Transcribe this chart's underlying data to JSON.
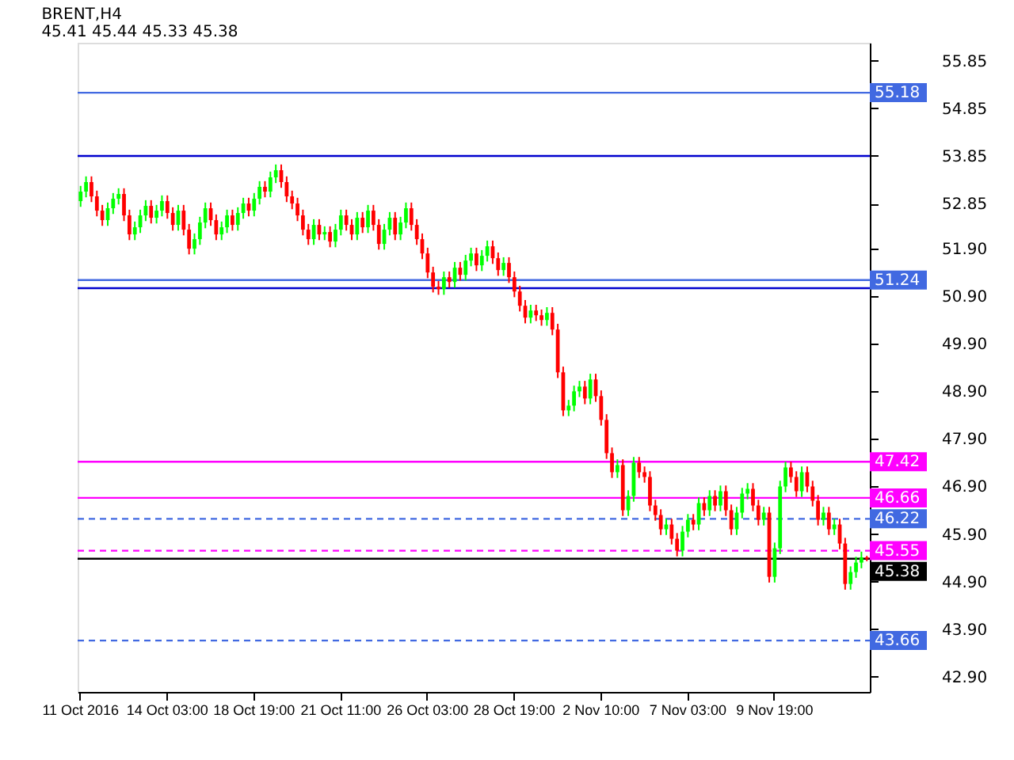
{
  "chart_data": {
    "type": "candlestick",
    "title": "BRENT,H4",
    "subtitle": "45.41 45.44 45.33 45.38",
    "categories": [
      "11 Oct 2016",
      null,
      null,
      null,
      null,
      null,
      null,
      null,
      null,
      null,
      null,
      null,
      null,
      null,
      null,
      null,
      "14 Oct 03:00",
      null,
      null,
      null,
      null,
      null,
      null,
      null,
      null,
      null,
      null,
      null,
      null,
      null,
      null,
      null,
      "18 Oct 19:00",
      null,
      null,
      null,
      null,
      null,
      null,
      null,
      null,
      null,
      null,
      null,
      null,
      null,
      null,
      null,
      "21 Oct 11:00",
      null,
      null,
      null,
      null,
      null,
      null,
      null,
      null,
      null,
      null,
      null,
      null,
      null,
      null,
      null,
      "26 Oct 03:00",
      null,
      null,
      null,
      null,
      null,
      null,
      null,
      null,
      null,
      null,
      null,
      null,
      null,
      null,
      null,
      "28 Oct 19:00",
      null,
      null,
      null,
      null,
      null,
      null,
      null,
      null,
      null,
      null,
      null,
      null,
      null,
      null,
      null,
      "2 Nov 10:00",
      null,
      null,
      null,
      null,
      null,
      null,
      null,
      null,
      null,
      null,
      null,
      null,
      null,
      null,
      null,
      "7 Nov 03:00",
      null,
      null,
      null,
      null,
      null,
      null,
      null,
      null,
      null,
      null,
      null,
      null,
      null,
      null,
      null,
      "9 Nov 19:00",
      null,
      null,
      null,
      null,
      null,
      null,
      null,
      null,
      null,
      null,
      null,
      null,
      null,
      null,
      null,
      null,
      null
    ],
    "ohlc": [
      [
        52.9,
        53.22,
        52.78,
        53.1
      ],
      [
        53.1,
        53.42,
        52.98,
        53.3
      ],
      [
        53.3,
        53.42,
        52.88,
        53.0
      ],
      [
        53.0,
        53.12,
        52.58,
        52.7
      ],
      [
        52.7,
        52.82,
        52.38,
        52.5
      ],
      [
        52.5,
        52.87,
        52.38,
        52.75
      ],
      [
        52.75,
        53.07,
        52.63,
        52.95
      ],
      [
        52.95,
        53.17,
        52.83,
        53.05
      ],
      [
        53.05,
        53.17,
        52.48,
        52.6
      ],
      [
        52.6,
        52.72,
        52.08,
        52.2
      ],
      [
        52.2,
        52.47,
        52.08,
        52.35
      ],
      [
        52.35,
        52.72,
        52.23,
        52.6
      ],
      [
        52.6,
        52.92,
        52.48,
        52.8
      ],
      [
        52.8,
        52.92,
        52.43,
        52.55
      ],
      [
        52.55,
        52.82,
        52.43,
        52.7
      ],
      [
        52.7,
        53.02,
        52.58,
        52.9
      ],
      [
        52.9,
        53.02,
        52.53,
        52.65
      ],
      [
        52.65,
        52.77,
        52.28,
        52.4
      ],
      [
        52.4,
        52.82,
        52.28,
        52.7
      ],
      [
        52.7,
        52.82,
        52.18,
        52.3
      ],
      [
        52.3,
        52.42,
        51.78,
        51.9
      ],
      [
        51.9,
        52.22,
        51.78,
        52.1
      ],
      [
        52.1,
        52.57,
        51.98,
        52.45
      ],
      [
        52.45,
        52.87,
        52.33,
        52.75
      ],
      [
        52.75,
        52.87,
        52.38,
        52.5
      ],
      [
        52.5,
        52.62,
        52.08,
        52.2
      ],
      [
        52.2,
        52.47,
        52.08,
        52.35
      ],
      [
        52.35,
        52.72,
        52.23,
        52.6
      ],
      [
        52.6,
        52.72,
        52.28,
        52.4
      ],
      [
        52.4,
        52.77,
        52.28,
        52.65
      ],
      [
        52.65,
        52.97,
        52.53,
        52.85
      ],
      [
        52.85,
        52.97,
        52.58,
        52.7
      ],
      [
        52.7,
        53.07,
        52.58,
        52.95
      ],
      [
        52.95,
        53.32,
        52.83,
        53.2
      ],
      [
        53.2,
        53.32,
        52.98,
        53.1
      ],
      [
        53.1,
        53.52,
        52.98,
        53.4
      ],
      [
        53.4,
        53.67,
        53.28,
        53.55
      ],
      [
        53.55,
        53.67,
        53.18,
        53.3
      ],
      [
        53.3,
        53.42,
        52.88,
        53.0
      ],
      [
        53.0,
        53.12,
        52.73,
        52.85
      ],
      [
        52.85,
        52.97,
        52.48,
        52.6
      ],
      [
        52.6,
        52.72,
        52.18,
        52.3
      ],
      [
        52.3,
        52.42,
        51.98,
        52.1
      ],
      [
        52.1,
        52.52,
        51.98,
        52.4
      ],
      [
        52.4,
        52.52,
        52.08,
        52.2
      ],
      [
        52.2,
        52.37,
        52.08,
        52.25
      ],
      [
        52.25,
        52.37,
        51.93,
        52.05
      ],
      [
        52.05,
        52.42,
        51.93,
        52.3
      ],
      [
        52.3,
        52.72,
        52.18,
        52.6
      ],
      [
        52.6,
        52.72,
        52.28,
        52.4
      ],
      [
        52.4,
        52.52,
        52.08,
        52.2
      ],
      [
        52.2,
        52.67,
        52.08,
        52.55
      ],
      [
        52.55,
        52.67,
        52.23,
        52.35
      ],
      [
        52.35,
        52.82,
        52.23,
        52.7
      ],
      [
        52.7,
        52.82,
        52.28,
        52.4
      ],
      [
        52.4,
        52.52,
        51.88,
        52.0
      ],
      [
        52.0,
        52.42,
        51.88,
        52.3
      ],
      [
        52.3,
        52.67,
        52.18,
        52.55
      ],
      [
        52.55,
        52.67,
        52.08,
        52.2
      ],
      [
        52.2,
        52.57,
        52.08,
        52.45
      ],
      [
        52.45,
        52.87,
        52.33,
        52.75
      ],
      [
        52.75,
        52.87,
        52.28,
        52.4
      ],
      [
        52.4,
        52.52,
        51.98,
        52.1
      ],
      [
        52.1,
        52.22,
        51.68,
        51.8
      ],
      [
        51.8,
        51.92,
        51.28,
        51.4
      ],
      [
        51.4,
        51.52,
        50.98,
        51.1
      ],
      [
        51.1,
        51.22,
        50.93,
        51.05
      ],
      [
        51.05,
        51.42,
        50.93,
        51.3
      ],
      [
        51.3,
        51.42,
        51.08,
        51.2
      ],
      [
        51.2,
        51.62,
        51.08,
        51.5
      ],
      [
        51.5,
        51.62,
        51.23,
        51.35
      ],
      [
        51.35,
        51.77,
        51.23,
        51.65
      ],
      [
        51.65,
        51.92,
        51.53,
        51.8
      ],
      [
        51.8,
        51.92,
        51.43,
        51.55
      ],
      [
        51.55,
        51.87,
        51.43,
        51.75
      ],
      [
        51.75,
        52.07,
        51.63,
        51.95
      ],
      [
        51.95,
        52.07,
        51.58,
        51.7
      ],
      [
        51.7,
        51.82,
        51.33,
        51.45
      ],
      [
        51.45,
        51.72,
        51.33,
        51.6
      ],
      [
        51.6,
        51.72,
        51.18,
        51.3
      ],
      [
        51.3,
        51.42,
        50.88,
        51.0
      ],
      [
        51.0,
        51.12,
        50.58,
        50.7
      ],
      [
        50.7,
        50.82,
        50.33,
        50.45
      ],
      [
        50.45,
        50.72,
        50.33,
        50.6
      ],
      [
        50.6,
        50.72,
        50.38,
        50.5
      ],
      [
        50.5,
        50.62,
        50.28,
        50.4
      ],
      [
        50.4,
        50.67,
        50.28,
        50.55
      ],
      [
        50.55,
        50.67,
        50.08,
        50.2
      ],
      [
        50.2,
        50.32,
        49.18,
        49.3
      ],
      [
        49.3,
        49.42,
        48.38,
        48.5
      ],
      [
        48.5,
        48.72,
        48.38,
        48.6
      ],
      [
        48.6,
        49.02,
        48.48,
        48.9
      ],
      [
        48.9,
        49.12,
        48.78,
        49.0
      ],
      [
        49.0,
        49.12,
        48.63,
        48.75
      ],
      [
        48.75,
        49.27,
        48.63,
        49.15
      ],
      [
        49.15,
        49.27,
        48.68,
        48.8
      ],
      [
        48.8,
        48.92,
        48.18,
        48.3
      ],
      [
        48.3,
        48.42,
        47.48,
        47.6
      ],
      [
        47.6,
        47.72,
        47.08,
        47.2
      ],
      [
        47.2,
        47.47,
        47.08,
        47.35
      ],
      [
        47.35,
        47.47,
        46.28,
        46.4
      ],
      [
        46.4,
        46.82,
        46.28,
        46.7
      ],
      [
        46.7,
        47.52,
        46.58,
        47.4
      ],
      [
        47.4,
        47.52,
        47.08,
        47.2
      ],
      [
        47.2,
        47.32,
        46.98,
        47.1
      ],
      [
        47.1,
        47.22,
        46.38,
        46.5
      ],
      [
        46.5,
        46.62,
        46.18,
        46.3
      ],
      [
        46.3,
        46.42,
        45.88,
        46.0
      ],
      [
        46.0,
        46.22,
        45.88,
        46.1
      ],
      [
        46.1,
        46.22,
        45.68,
        45.8
      ],
      [
        45.8,
        45.92,
        45.43,
        45.55
      ],
      [
        45.55,
        46.07,
        45.43,
        45.95
      ],
      [
        45.95,
        46.32,
        45.83,
        46.2
      ],
      [
        46.2,
        46.32,
        45.98,
        46.1
      ],
      [
        46.1,
        46.67,
        45.98,
        46.55
      ],
      [
        46.55,
        46.67,
        46.28,
        46.4
      ],
      [
        46.4,
        46.82,
        46.28,
        46.7
      ],
      [
        46.7,
        46.82,
        46.38,
        46.5
      ],
      [
        46.5,
        46.92,
        46.38,
        46.8
      ],
      [
        46.8,
        46.92,
        46.28,
        46.4
      ],
      [
        46.4,
        46.52,
        45.88,
        46.0
      ],
      [
        46.0,
        46.47,
        45.88,
        46.35
      ],
      [
        46.35,
        46.87,
        46.23,
        46.75
      ],
      [
        46.75,
        46.97,
        46.63,
        46.85
      ],
      [
        46.85,
        46.97,
        46.38,
        46.5
      ],
      [
        46.5,
        46.62,
        46.08,
        46.2
      ],
      [
        46.2,
        46.47,
        46.08,
        46.35
      ],
      [
        46.35,
        46.47,
        44.88,
        45.0
      ],
      [
        45.0,
        45.72,
        44.88,
        45.6
      ],
      [
        45.6,
        47.02,
        45.48,
        46.9
      ],
      [
        46.9,
        47.42,
        46.78,
        47.3
      ],
      [
        47.3,
        47.42,
        46.98,
        47.1
      ],
      [
        47.1,
        47.22,
        46.68,
        46.8
      ],
      [
        46.8,
        47.32,
        46.68,
        47.2
      ],
      [
        47.2,
        47.32,
        46.78,
        46.9
      ],
      [
        46.9,
        47.02,
        46.48,
        46.6
      ],
      [
        46.6,
        46.72,
        46.08,
        46.2
      ],
      [
        46.2,
        46.47,
        46.08,
        46.35
      ],
      [
        46.35,
        46.47,
        45.88,
        46.0
      ],
      [
        46.0,
        46.22,
        45.88,
        46.1
      ],
      [
        46.1,
        46.22,
        45.58,
        45.7
      ],
      [
        45.7,
        45.82,
        44.73,
        44.85
      ],
      [
        44.85,
        45.22,
        44.73,
        45.1
      ],
      [
        45.1,
        45.42,
        44.98,
        45.3
      ],
      [
        45.3,
        45.53,
        45.18,
        45.41
      ],
      [
        45.41,
        45.44,
        45.33,
        45.38
      ]
    ],
    "colors": [
      "#00ff00",
      "#00ff00",
      "#ff0000",
      "#ff0000",
      "#ff0000",
      "#00ff00",
      "#00ff00",
      "#00ff00",
      "#ff0000",
      "#ff0000",
      "#00ff00",
      "#00ff00",
      "#00ff00",
      "#ff0000",
      "#00ff00",
      "#00ff00",
      "#ff0000",
      "#ff0000",
      "#00ff00",
      "#ff0000",
      "#ff0000",
      "#00ff00",
      "#00ff00",
      "#00ff00",
      "#ff0000",
      "#ff0000",
      "#00ff00",
      "#00ff00",
      "#ff0000",
      "#00ff00",
      "#00ff00",
      "#ff0000",
      "#00ff00",
      "#00ff00",
      "#ff0000",
      "#00ff00",
      "#00ff00",
      "#ff0000",
      "#ff0000",
      "#ff0000",
      "#ff0000",
      "#ff0000",
      "#ff0000",
      "#00ff00",
      "#ff0000",
      "#00ff00",
      "#ff0000",
      "#00ff00",
      "#00ff00",
      "#ff0000",
      "#ff0000",
      "#00ff00",
      "#ff0000",
      "#00ff00",
      "#ff0000",
      "#ff0000",
      "#00ff00",
      "#00ff00",
      "#ff0000",
      "#00ff00",
      "#00ff00",
      "#ff0000",
      "#ff0000",
      "#ff0000",
      "#ff0000",
      "#ff0000",
      "#ff0000",
      "#00ff00",
      "#ff0000",
      "#00ff00",
      "#ff0000",
      "#00ff00",
      "#00ff00",
      "#ff0000",
      "#00ff00",
      "#00ff00",
      "#ff0000",
      "#ff0000",
      "#00ff00",
      "#ff0000",
      "#ff0000",
      "#ff0000",
      "#ff0000",
      "#00ff00",
      "#ff0000",
      "#ff0000",
      "#00ff00",
      "#ff0000",
      "#ff0000",
      "#ff0000",
      "#00ff00",
      "#00ff00",
      "#00ff00",
      "#ff0000",
      "#00ff00",
      "#ff0000",
      "#ff0000",
      "#ff0000",
      "#ff0000",
      "#00ff00",
      "#ff0000",
      "#00ff00",
      "#00ff00",
      "#ff0000",
      "#ff0000",
      "#ff0000",
      "#ff0000",
      "#ff0000",
      "#00ff00",
      "#ff0000",
      "#ff0000",
      "#00ff00",
      "#00ff00",
      "#ff0000",
      "#00ff00",
      "#ff0000",
      "#00ff00",
      "#ff0000",
      "#00ff00",
      "#ff0000",
      "#ff0000",
      "#00ff00",
      "#00ff00",
      "#00ff00",
      "#ff0000",
      "#ff0000",
      "#00ff00",
      "#ff0000",
      "#00ff00",
      "#00ff00",
      "#00ff00",
      "#ff0000",
      "#ff0000",
      "#00ff00",
      "#ff0000",
      "#ff0000",
      "#ff0000",
      "#00ff00",
      "#ff0000",
      "#00ff00",
      "#ff0000",
      "#ff0000",
      "#00ff00",
      "#00ff00",
      "#00ff00",
      "#ff0000"
    ],
    "ylim": [
      42.58,
      56.23
    ],
    "yticks": [
      {
        "value": 42.9,
        "label": "42.90"
      },
      {
        "value": 43.9,
        "label": "43.90"
      },
      {
        "value": 44.9,
        "label": "44.90"
      },
      {
        "value": 45.9,
        "label": "45.90"
      },
      {
        "value": 46.9,
        "label": "46.90"
      },
      {
        "value": 47.9,
        "label": "47.90"
      },
      {
        "value": 48.9,
        "label": "48.90"
      },
      {
        "value": 49.9,
        "label": "49.90"
      },
      {
        "value": 50.9,
        "label": "50.90"
      },
      {
        "value": 51.9,
        "label": "51.90"
      },
      52.85,
      53.85,
      54.85,
      55.85
    ],
    "ref_lines": [
      {
        "axis": "y",
        "value": 55.18,
        "label": "55.18",
        "color": "#4169e1",
        "line_style": "solid"
      },
      {
        "axis": "y",
        "value": 53.85,
        "label": null,
        "color": "#0000cd",
        "line_style": "solid"
      },
      {
        "axis": "y",
        "value": 51.24,
        "label": "51.24",
        "color": "#4169e1",
        "line_style": "solid"
      },
      {
        "axis": "y",
        "value": 51.07,
        "label": null,
        "color": "#0000cd",
        "line_style": "solid"
      },
      {
        "axis": "y",
        "value": 47.42,
        "label": "47.42",
        "color": "#ff00ff",
        "line_style": "solid"
      },
      {
        "axis": "y",
        "value": 46.66,
        "label": "46.66",
        "color": "#ff00ff",
        "line_style": "solid"
      },
      {
        "axis": "y",
        "value": 46.22,
        "label": "46.22",
        "color": "#4169e1",
        "line_style": "dashed"
      },
      {
        "axis": "y",
        "value": 45.55,
        "label": "45.55",
        "color": "#ff00ff",
        "line_style": "dashed"
      },
      {
        "axis": "y",
        "value": 45.38,
        "label": "45.38",
        "color": "#000000",
        "line_style": "solid"
      },
      {
        "axis": "y",
        "value": 43.66,
        "label": "43.66",
        "color": "#4169e1",
        "line_style": "dashed"
      }
    ],
    "tick_labels": "xy"
  }
}
